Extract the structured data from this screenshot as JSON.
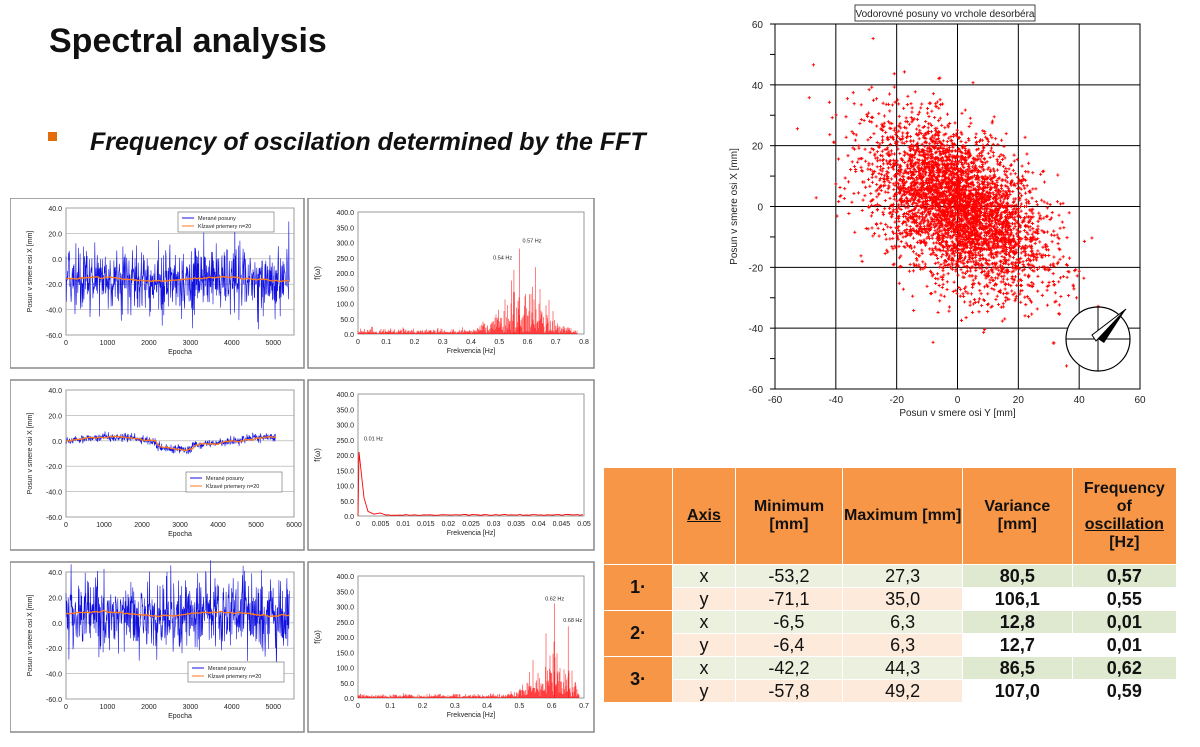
{
  "slide": {
    "title": "Spectral analysis",
    "bullet": "Frequency of oscilation determined by the FFT",
    "accent_color": "#e36c0a"
  },
  "scatter": {
    "title": "Vodorovné posuny vo vrchole desorbéra",
    "xlabel": "Posun v smere osi Y [mm]",
    "ylabel": "Posun v smere osi X [mm]",
    "xticks": [
      "-60",
      "-40",
      "-20",
      "0",
      "20",
      "40",
      "60"
    ],
    "yticks": [
      "60",
      "40",
      "20",
      "0",
      "-20",
      "-40",
      "-60"
    ],
    "compass_icon": "compass-icon"
  },
  "time_panels": [
    {
      "ylabel": "Posun v smere osi X [mm]",
      "xlabel": "Epocha",
      "yticks": [
        "40.0",
        "20.0",
        "0.0",
        "-20.0",
        "-40.0",
        "-60.0"
      ],
      "xticks": [
        "0",
        "1000",
        "2000",
        "3000",
        "4000",
        "5000"
      ],
      "legend": [
        "Merané posuny",
        "Kĺzavé priemery n=20"
      ]
    },
    {
      "ylabel": "Posun v smere osi X [mm]",
      "xlabel": "Epocha",
      "yticks": [
        "40.0",
        "20.0",
        "0.0",
        "-20.0",
        "-40.0",
        "-60.0"
      ],
      "xticks": [
        "0",
        "1000",
        "2000",
        "3000",
        "4000",
        "5000",
        "6000"
      ],
      "legend": [
        "Merané posuny",
        "Kĺzavé priemery n=20"
      ]
    },
    {
      "ylabel": "Posun v smere osi X [mm]",
      "xlabel": "Epocha",
      "yticks": [
        "40.0",
        "20.0",
        "0.0",
        "-20.0",
        "-40.0",
        "-60.0"
      ],
      "xticks": [
        "0",
        "1000",
        "2000",
        "3000",
        "4000",
        "5000"
      ],
      "legend": [
        "Merané posuny",
        "Kĺzavé priemery n=20"
      ]
    }
  ],
  "fft_panels": [
    {
      "ylabel": "f(ω)",
      "xlabel": "Frekvencia [Hz]",
      "yticks": [
        "400.0",
        "350.0",
        "300.0",
        "250.0",
        "200.0",
        "150.0",
        "100.0",
        "50.0",
        "0.0"
      ],
      "xticks": [
        "0",
        "0.1",
        "0.2",
        "0.3",
        "0.4",
        "0.5",
        "0.6",
        "0.7",
        "0.8"
      ],
      "peaks": [
        "0.54 Hz",
        "0.57 Hz"
      ]
    },
    {
      "ylabel": "f(ω)",
      "xlabel": "Frekvencia [Hz]",
      "yticks": [
        "400.0",
        "350.0",
        "300.0",
        "250.0",
        "200.0",
        "150.0",
        "100.0",
        "50.0",
        "0.0"
      ],
      "xticks": [
        "0",
        "0.005",
        "0.01",
        "0.015",
        "0.02",
        "0.025",
        "0.03",
        "0.035",
        "0.04",
        "0.045",
        "0.05"
      ],
      "peaks": [
        "0.01 Hz"
      ]
    },
    {
      "ylabel": "f(ω)",
      "xlabel": "Frekvencia [Hz]",
      "yticks": [
        "400.0",
        "350.0",
        "300.0",
        "250.0",
        "200.0",
        "150.0",
        "100.0",
        "50.0",
        "0.0"
      ],
      "xticks": [
        "0",
        "0.1",
        "0.2",
        "0.3",
        "0.4",
        "0.5",
        "0.6",
        "0.7"
      ],
      "peaks": [
        "0.62 Hz",
        "0.68 Hz"
      ]
    }
  ],
  "table": {
    "headers": {
      "axis": "Axis",
      "minimum": "Minimum [mm]",
      "maximum": "Maximum [mm]",
      "variance": "Variance [mm]",
      "freq_line1": "Frequency",
      "freq_line2": "of",
      "freq_line3": "oscillation",
      "freq_unit": "[Hz]"
    },
    "groups": [
      {
        "label": "1·",
        "rows": [
          [
            "x",
            "-53,2",
            "27,3",
            "80,5",
            "0,57"
          ],
          [
            "y",
            "-71,1",
            "35,0",
            "106,1",
            "0,55"
          ]
        ]
      },
      {
        "label": "2·",
        "rows": [
          [
            "x",
            "-6,5",
            "6,3",
            "12,8",
            "0,01"
          ],
          [
            "y",
            "-6,4",
            "6,3",
            "12,7",
            "0,01"
          ]
        ]
      },
      {
        "label": "3·",
        "rows": [
          [
            "x",
            "-42,2",
            "44,3",
            "86,5",
            "0,62"
          ],
          [
            "y",
            "-57,8",
            "49,2",
            "107,0",
            "0,59"
          ]
        ]
      }
    ],
    "header_color": "#f79646"
  }
}
